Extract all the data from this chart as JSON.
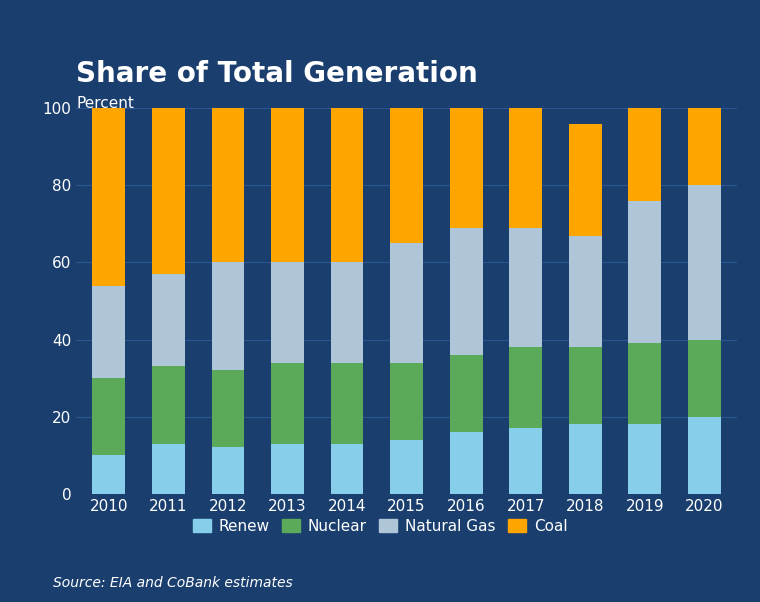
{
  "title": "Share of Total Generation",
  "ylabel": "Percent",
  "source": "Source: EIA and CoBank estimates",
  "years": [
    2010,
    2011,
    2012,
    2013,
    2014,
    2015,
    2016,
    2017,
    2018,
    2019,
    2020
  ],
  "renew": [
    10,
    13,
    12,
    13,
    13,
    14,
    16,
    17,
    18,
    18,
    20
  ],
  "nuclear": [
    20,
    20,
    20,
    21,
    21,
    20,
    20,
    21,
    20,
    21,
    20
  ],
  "natural_gas": [
    24,
    24,
    28,
    26,
    26,
    31,
    33,
    31,
    29,
    37,
    40
  ],
  "coal": [
    46,
    43,
    40,
    40,
    40,
    35,
    31,
    31,
    29,
    24,
    20
  ],
  "color_renew": "#87CEEB",
  "color_nuclear": "#5aaa5a",
  "color_natural_gas": "#aec6d8",
  "color_coal": "#FFA500",
  "background_color": "#1a3f6f",
  "text_color": "#ffffff",
  "grid_color": "#2a5590",
  "bar_width": 0.55,
  "ylim": [
    0,
    100
  ],
  "title_fontsize": 20,
  "tick_fontsize": 11,
  "legend_fontsize": 11,
  "source_fontsize": 10
}
